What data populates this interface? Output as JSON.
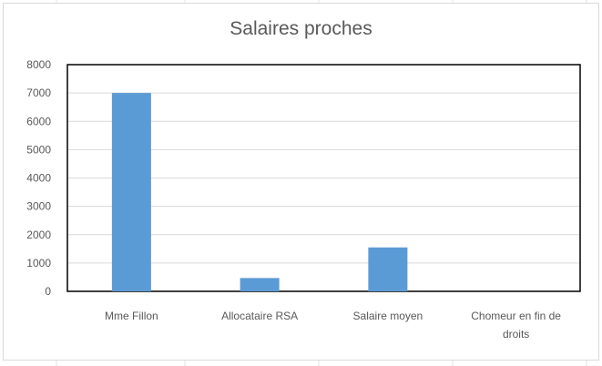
{
  "chart_data": {
    "type": "bar",
    "title": "Salaires proches",
    "categories": [
      "Mme Fillon",
      "Allocataire RSA",
      "Salaire moyen",
      "Chomeur en fin de droits"
    ],
    "category_lines": [
      [
        "Mme Fillon"
      ],
      [
        "Allocataire RSA"
      ],
      [
        "Salaire moyen"
      ],
      [
        "Chomeur en fin de",
        "droits"
      ]
    ],
    "values": [
      7000,
      470,
      1550,
      0
    ],
    "ylim": [
      0,
      8000
    ],
    "yticks": [
      0,
      1000,
      2000,
      3000,
      4000,
      5000,
      6000,
      7000,
      8000
    ],
    "xlabel": "",
    "ylabel": "",
    "grid": true,
    "legend": "none",
    "bar_color": "#5b9bd5"
  }
}
